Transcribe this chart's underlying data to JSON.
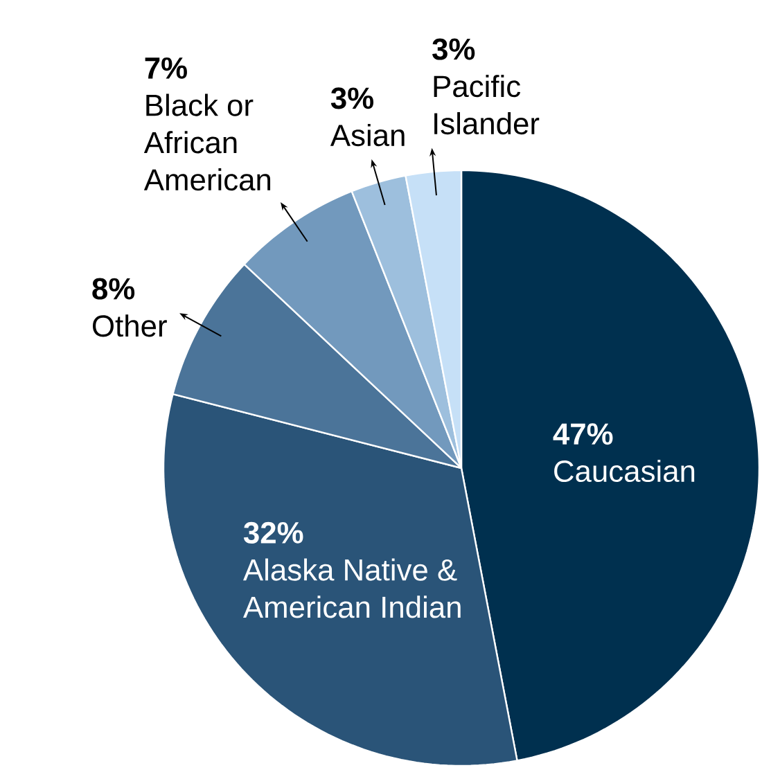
{
  "chart_data": {
    "type": "pie",
    "categories": [
      "Caucasian",
      "Alaska Native & American Indian",
      "Other",
      "Black or African American",
      "Asian",
      "Pacific Islander"
    ],
    "values": [
      47,
      32,
      8,
      7,
      3,
      3
    ],
    "value_labels": [
      "47%",
      "32%",
      "8%",
      "7%",
      "3%",
      "3%"
    ],
    "colors": [
      "#00304f",
      "#2a5478",
      "#4b7499",
      "#7299bd",
      "#9dbfdd",
      "#c6e0f7"
    ]
  }
}
